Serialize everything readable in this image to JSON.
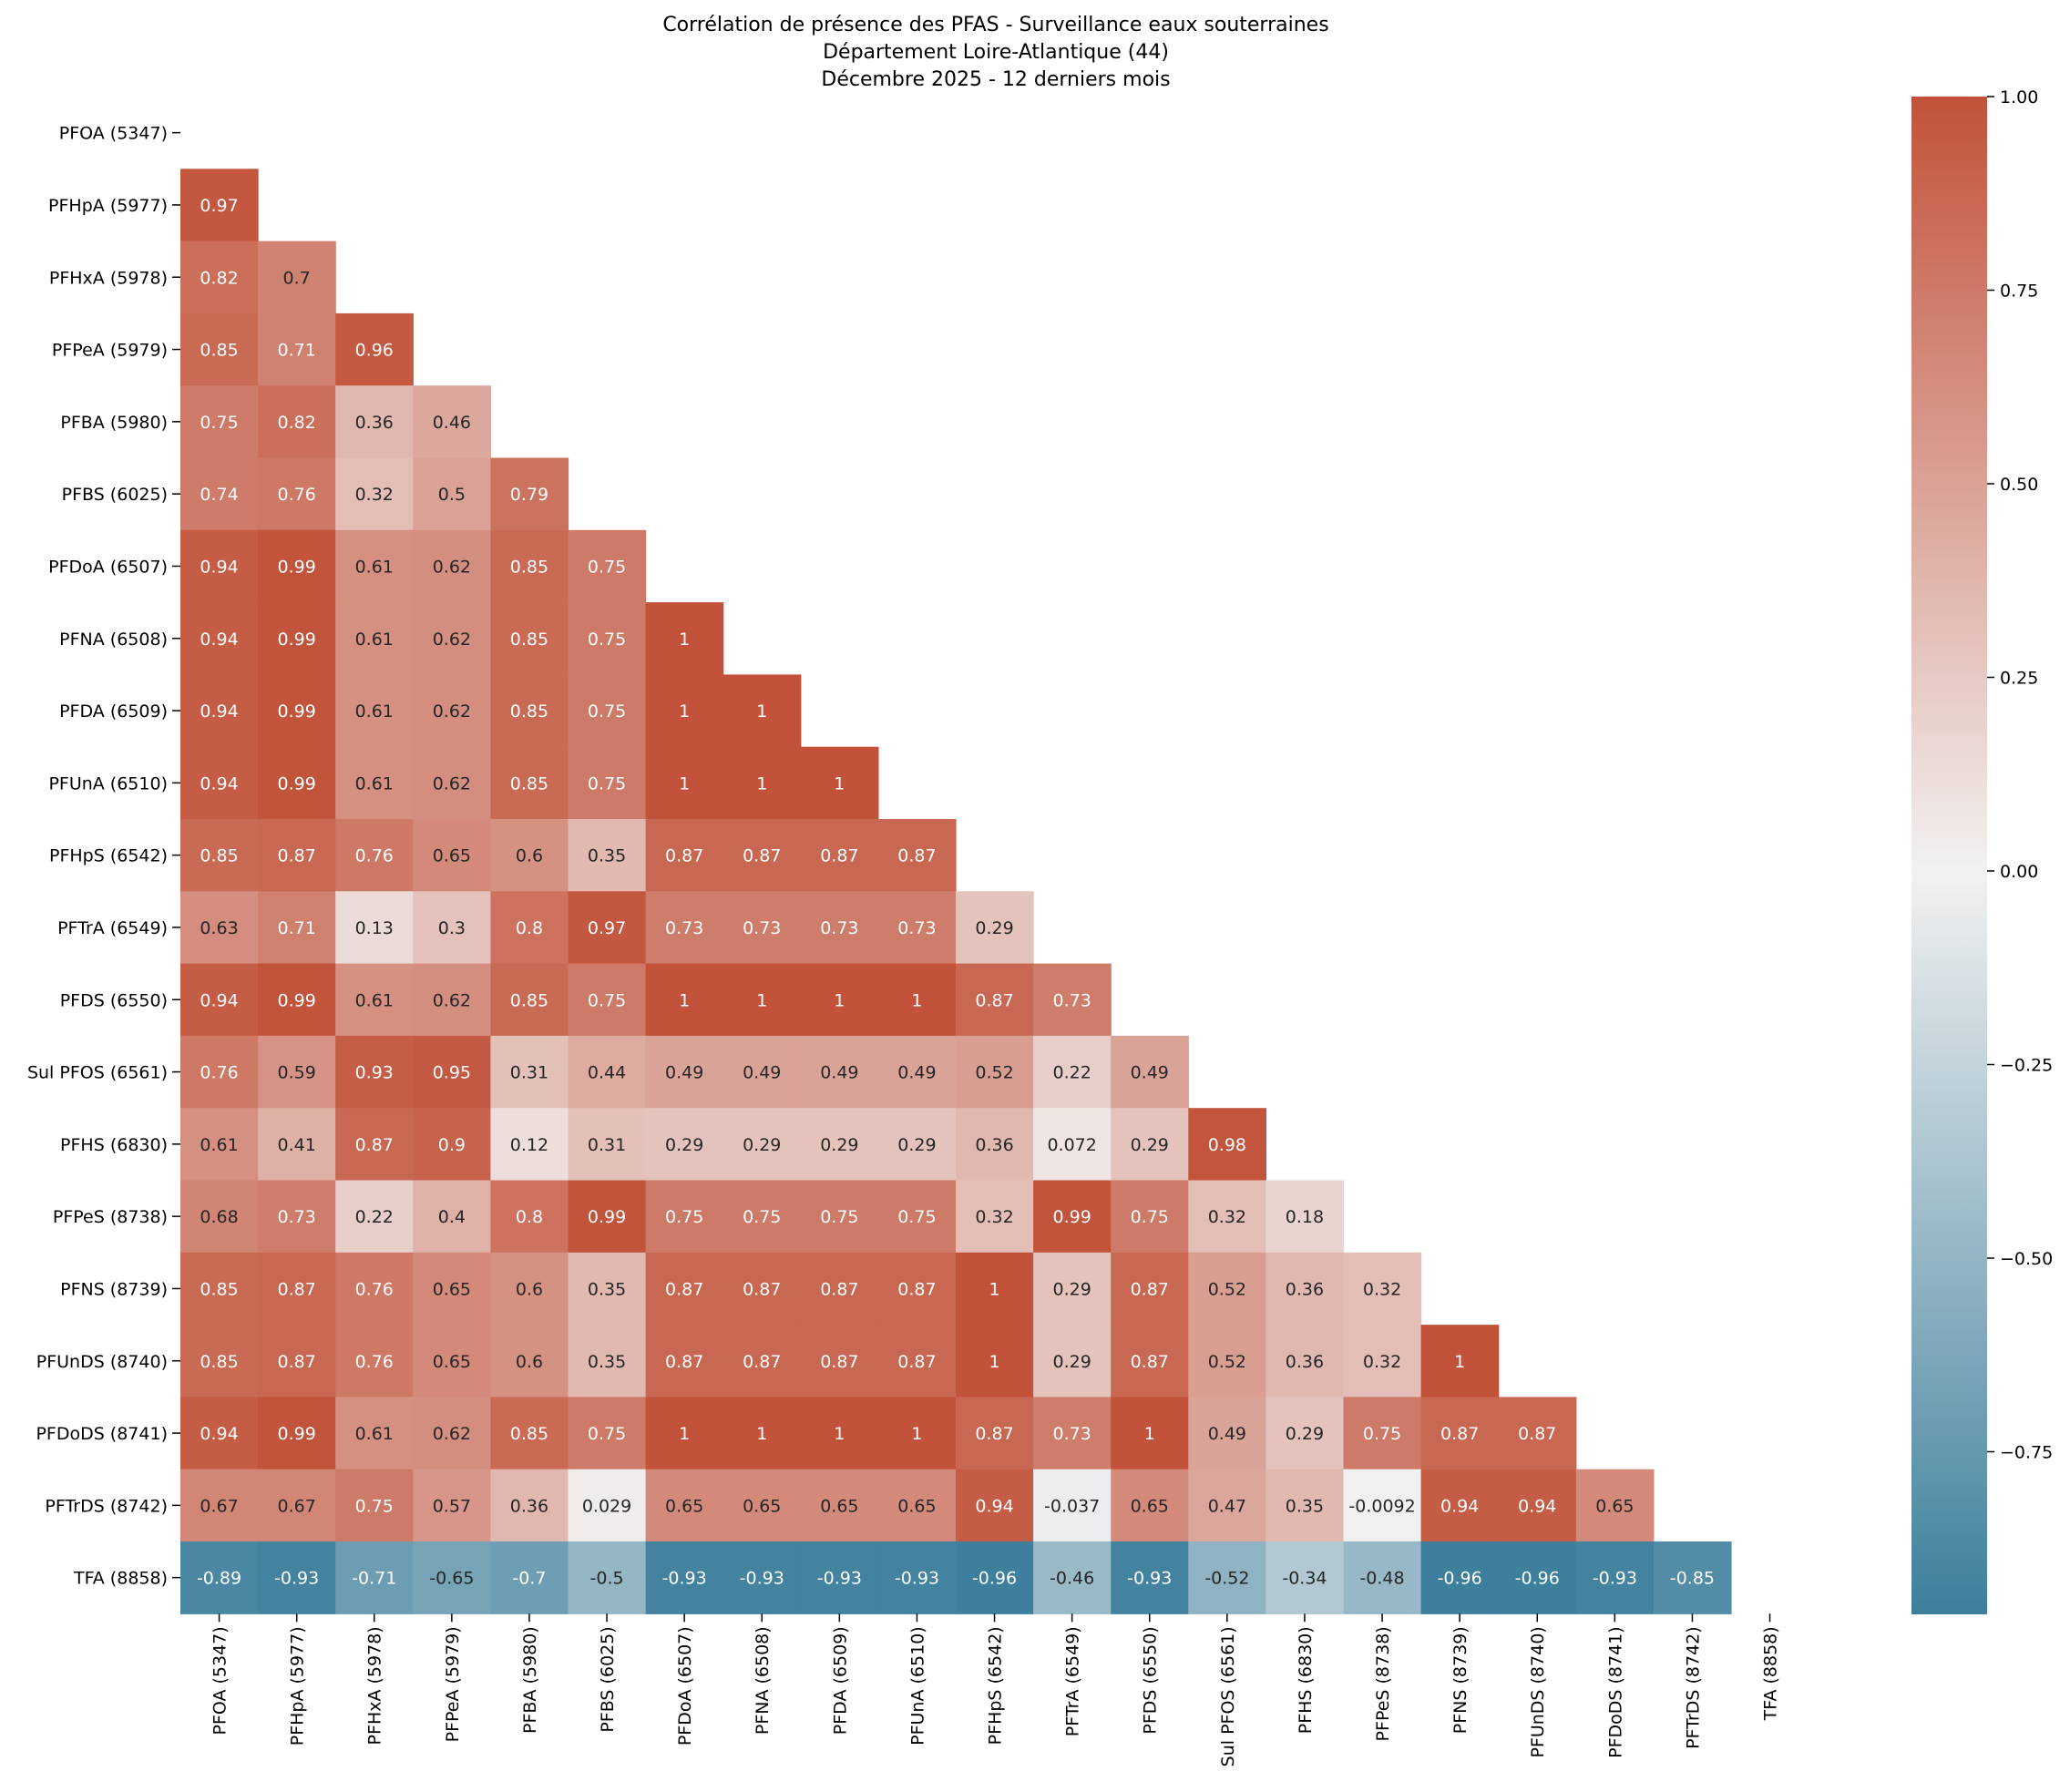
{
  "chart_data": {
    "type": "heatmap",
    "title_lines": [
      "Corrélation de présence des PFAS - Surveillance eaux souterraines",
      "Département Loire-Atlantique (44)",
      "Décembre 2025 - 12 derniers mois"
    ],
    "labels": [
      "PFOA (5347)",
      "PFHpA (5977)",
      "PFHxA (5978)",
      "PFPeA (5979)",
      "PFBA (5980)",
      "PFBS (6025)",
      "PFDoA (6507)",
      "PFNA (6508)",
      "PFDA (6509)",
      "PFUnA (6510)",
      "PFHpS (6542)",
      "PFTrA (6549)",
      "PFDS (6550)",
      "Sul PFOS (6561)",
      "PFHS (6830)",
      "PFPeS (8738)",
      "PFNS (8739)",
      "PFUnDS (8740)",
      "PFDoDS (8741)",
      "PFTrDS (8742)",
      "TFA (8858)"
    ],
    "lower_triangle": [
      [],
      [
        "0.97"
      ],
      [
        "0.82",
        "0.7"
      ],
      [
        "0.85",
        "0.71",
        "0.96"
      ],
      [
        "0.75",
        "0.82",
        "0.36",
        "0.46"
      ],
      [
        "0.74",
        "0.76",
        "0.32",
        "0.5",
        "0.79"
      ],
      [
        "0.94",
        "0.99",
        "0.61",
        "0.62",
        "0.85",
        "0.75"
      ],
      [
        "0.94",
        "0.99",
        "0.61",
        "0.62",
        "0.85",
        "0.75",
        "1"
      ],
      [
        "0.94",
        "0.99",
        "0.61",
        "0.62",
        "0.85",
        "0.75",
        "1",
        "1"
      ],
      [
        "0.94",
        "0.99",
        "0.61",
        "0.62",
        "0.85",
        "0.75",
        "1",
        "1",
        "1"
      ],
      [
        "0.85",
        "0.87",
        "0.76",
        "0.65",
        "0.6",
        "0.35",
        "0.87",
        "0.87",
        "0.87",
        "0.87"
      ],
      [
        "0.63",
        "0.71",
        "0.13",
        "0.3",
        "0.8",
        "0.97",
        "0.73",
        "0.73",
        "0.73",
        "0.73",
        "0.29"
      ],
      [
        "0.94",
        "0.99",
        "0.61",
        "0.62",
        "0.85",
        "0.75",
        "1",
        "1",
        "1",
        "1",
        "0.87",
        "0.73"
      ],
      [
        "0.76",
        "0.59",
        "0.93",
        "0.95",
        "0.31",
        "0.44",
        "0.49",
        "0.49",
        "0.49",
        "0.49",
        "0.52",
        "0.22",
        "0.49"
      ],
      [
        "0.61",
        "0.41",
        "0.87",
        "0.9",
        "0.12",
        "0.31",
        "0.29",
        "0.29",
        "0.29",
        "0.29",
        "0.36",
        "0.072",
        "0.29",
        "0.98"
      ],
      [
        "0.68",
        "0.73",
        "0.22",
        "0.4",
        "0.8",
        "0.99",
        "0.75",
        "0.75",
        "0.75",
        "0.75",
        "0.32",
        "0.99",
        "0.75",
        "0.32",
        "0.18"
      ],
      [
        "0.85",
        "0.87",
        "0.76",
        "0.65",
        "0.6",
        "0.35",
        "0.87",
        "0.87",
        "0.87",
        "0.87",
        "1",
        "0.29",
        "0.87",
        "0.52",
        "0.36",
        "0.32"
      ],
      [
        "0.85",
        "0.87",
        "0.76",
        "0.65",
        "0.6",
        "0.35",
        "0.87",
        "0.87",
        "0.87",
        "0.87",
        "1",
        "0.29",
        "0.87",
        "0.52",
        "0.36",
        "0.32",
        "1"
      ],
      [
        "0.94",
        "0.99",
        "0.61",
        "0.62",
        "0.85",
        "0.75",
        "1",
        "1",
        "1",
        "1",
        "0.87",
        "0.73",
        "1",
        "0.49",
        "0.29",
        "0.75",
        "0.87",
        "0.87"
      ],
      [
        "0.67",
        "0.67",
        "0.75",
        "0.57",
        "0.36",
        "0.029",
        "0.65",
        "0.65",
        "0.65",
        "0.65",
        "0.94",
        "-0.037",
        "0.65",
        "0.47",
        "0.35",
        "-0.0092",
        "0.94",
        "0.94",
        "0.65"
      ],
      [
        "-0.89",
        "-0.93",
        "-0.71",
        "-0.65",
        "-0.7",
        "-0.5",
        "-0.93",
        "-0.93",
        "-0.93",
        "-0.93",
        "-0.96",
        "-0.46",
        "-0.93",
        "-0.52",
        "-0.34",
        "-0.48",
        "-0.96",
        "-0.96",
        "-0.93",
        "-0.85"
      ]
    ],
    "vmin": -0.96,
    "vmax": 1.0,
    "colorbar_ticks": [
      "1.00",
      "0.75",
      "0.50",
      "0.25",
      "0.00",
      "−0.25",
      "−0.50",
      "−0.75"
    ],
    "colorbar_tick_values": [
      1.0,
      0.75,
      0.5,
      0.25,
      0.0,
      -0.25,
      -0.5,
      -0.75
    ],
    "colors": {
      "negative": "#3d7f9c",
      "neutral": "#f2f1f1",
      "positive": "#c2523a"
    }
  }
}
